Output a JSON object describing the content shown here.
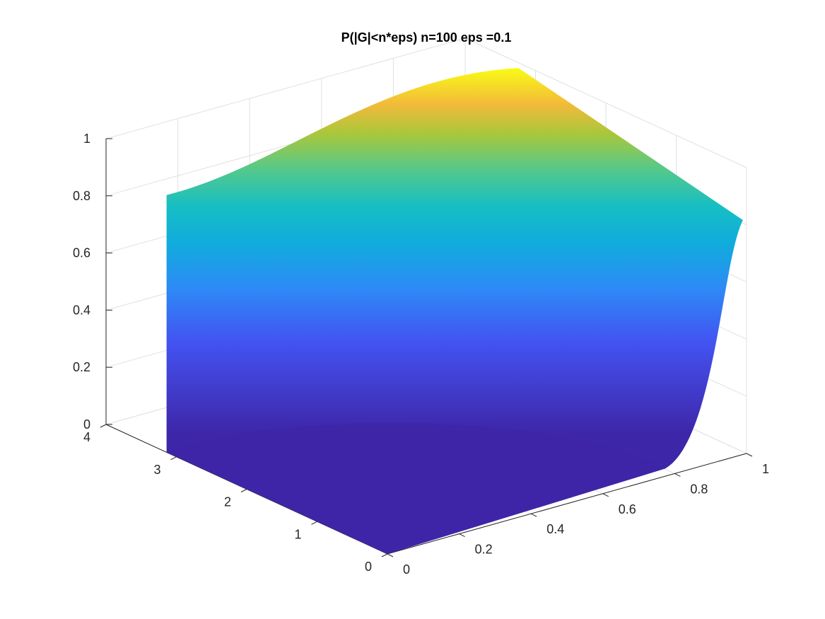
{
  "chart_data": {
    "type": "surface",
    "title": "P(|G|<n*eps) n=100 eps =0.1",
    "colormap": "parula",
    "x_axis": {
      "range": [
        0,
        1
      ],
      "ticks": [
        0,
        0.2,
        0.4,
        0.6,
        0.8,
        1
      ],
      "tick_labels": [
        "0",
        "0.2",
        "0.4",
        "0.6",
        "0.8",
        "1"
      ]
    },
    "y_axis": {
      "range": [
        0,
        4
      ],
      "ticks": [
        0,
        1,
        2,
        3,
        4
      ],
      "tick_labels": [
        "0",
        "1",
        "2",
        "3",
        "4"
      ]
    },
    "z_axis": {
      "range": [
        0,
        1
      ],
      "ticks": [
        0,
        0.2,
        0.4,
        0.6,
        0.8,
        1
      ],
      "tick_labels": [
        "0",
        "0.2",
        "0.4",
        "0.6",
        "0.8",
        "1"
      ]
    },
    "surface_extent": {
      "x": [
        0,
        0.99
      ],
      "y": [
        0,
        3.14
      ]
    },
    "grid": true,
    "boundary_values": {
      "at_x0_y_max": 0.9,
      "at_x_max_y0": 0.82,
      "max_corner": 1.0,
      "near_origin": 0.0
    }
  }
}
